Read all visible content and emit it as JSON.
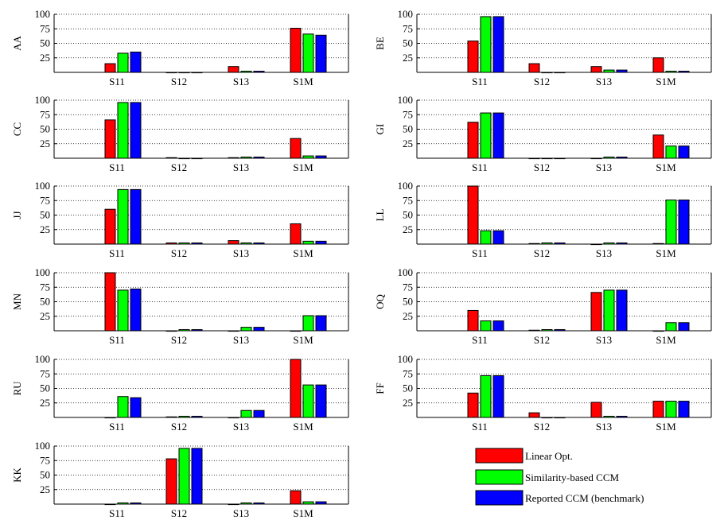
{
  "colors": {
    "linear": "#ff0000",
    "similarity": "#00ff00",
    "reported": "#0000ff",
    "grid": "#000000"
  },
  "legend": {
    "items": [
      {
        "label": "Linear Opt.",
        "color": "#ff0000"
      },
      {
        "label": "Similarity-based CCM",
        "color": "#00ff00"
      },
      {
        "label": "Reported CCM (benchmark)",
        "color": "#0000ff"
      }
    ]
  },
  "chart_data": [
    {
      "type": "bar",
      "ylabel": "AA",
      "categories": [
        "S11",
        "S12",
        "S13",
        "S1M"
      ],
      "yticks": [
        25,
        50,
        75,
        100
      ],
      "ylim": [
        0,
        100
      ],
      "grid": true,
      "series": [
        {
          "name": "Linear Opt.",
          "values": [
            15,
            0,
            10,
            76
          ]
        },
        {
          "name": "Similarity-based CCM",
          "values": [
            33,
            0,
            2,
            66
          ]
        },
        {
          "name": "Reported CCM (benchmark)",
          "values": [
            35,
            0,
            2,
            64
          ]
        }
      ]
    },
    {
      "type": "bar",
      "ylabel": "BE",
      "categories": [
        "S11",
        "S12",
        "S13",
        "S1M"
      ],
      "yticks": [
        25,
        50,
        75,
        100
      ],
      "ylim": [
        0,
        100
      ],
      "grid": true,
      "series": [
        {
          "name": "Linear Opt.",
          "values": [
            54,
            15,
            10,
            25
          ]
        },
        {
          "name": "Similarity-based CCM",
          "values": [
            96,
            0,
            4,
            2
          ]
        },
        {
          "name": "Reported CCM (benchmark)",
          "values": [
            96,
            0,
            4,
            2
          ]
        }
      ]
    },
    {
      "type": "bar",
      "ylabel": "CC",
      "categories": [
        "S11",
        "S12",
        "S13",
        "S1M"
      ],
      "yticks": [
        25,
        50,
        75,
        100
      ],
      "ylim": [
        0,
        100
      ],
      "grid": true,
      "series": [
        {
          "name": "Linear Opt.",
          "values": [
            66,
            1,
            1,
            34
          ]
        },
        {
          "name": "Similarity-based CCM",
          "values": [
            96,
            0,
            2,
            4
          ]
        },
        {
          "name": "Reported CCM (benchmark)",
          "values": [
            96,
            0,
            2,
            4
          ]
        }
      ]
    },
    {
      "type": "bar",
      "ylabel": "GI",
      "categories": [
        "S11",
        "S12",
        "S13",
        "S1M"
      ],
      "yticks": [
        25,
        50,
        75,
        100
      ],
      "ylim": [
        0,
        100
      ],
      "grid": true,
      "series": [
        {
          "name": "Linear Opt.",
          "values": [
            62,
            0,
            0,
            40
          ]
        },
        {
          "name": "Similarity-based CCM",
          "values": [
            78,
            0,
            2,
            21
          ]
        },
        {
          "name": "Reported CCM (benchmark)",
          "values": [
            78,
            0,
            2,
            21
          ]
        }
      ]
    },
    {
      "type": "bar",
      "ylabel": "JJ",
      "categories": [
        "S11",
        "S12",
        "S13",
        "S1M"
      ],
      "yticks": [
        25,
        50,
        75,
        100
      ],
      "ylim": [
        0,
        100
      ],
      "grid": true,
      "series": [
        {
          "name": "Linear Opt.",
          "values": [
            60,
            2,
            6,
            35
          ]
        },
        {
          "name": "Similarity-based CCM",
          "values": [
            94,
            2,
            2,
            5
          ]
        },
        {
          "name": "Reported CCM (benchmark)",
          "values": [
            94,
            2,
            2,
            5
          ]
        }
      ]
    },
    {
      "type": "bar",
      "ylabel": "LL",
      "categories": [
        "S11",
        "S12",
        "S13",
        "S1M"
      ],
      "yticks": [
        25,
        50,
        75,
        100
      ],
      "ylim": [
        0,
        100
      ],
      "grid": true,
      "series": [
        {
          "name": "Linear Opt.",
          "values": [
            100,
            1,
            0,
            1
          ]
        },
        {
          "name": "Similarity-based CCM",
          "values": [
            23,
            2,
            2,
            76
          ]
        },
        {
          "name": "Reported CCM (benchmark)",
          "values": [
            23,
            2,
            2,
            76
          ]
        }
      ]
    },
    {
      "type": "bar",
      "ylabel": "MN",
      "categories": [
        "S11",
        "S12",
        "S13",
        "S1M"
      ],
      "yticks": [
        25,
        50,
        75,
        100
      ],
      "ylim": [
        0,
        100
      ],
      "grid": true,
      "series": [
        {
          "name": "Linear Opt.",
          "values": [
            100,
            0,
            0,
            0
          ]
        },
        {
          "name": "Similarity-based CCM",
          "values": [
            70,
            2,
            6,
            26
          ]
        },
        {
          "name": "Reported CCM (benchmark)",
          "values": [
            72,
            2,
            6,
            26
          ]
        }
      ]
    },
    {
      "type": "bar",
      "ylabel": "OQ",
      "categories": [
        "S11",
        "S12",
        "S13",
        "S1M"
      ],
      "yticks": [
        25,
        50,
        75,
        100
      ],
      "ylim": [
        0,
        100
      ],
      "grid": true,
      "series": [
        {
          "name": "Linear Opt.",
          "values": [
            35,
            1,
            66,
            0
          ]
        },
        {
          "name": "Similarity-based CCM",
          "values": [
            17,
            2,
            70,
            14
          ]
        },
        {
          "name": "Reported CCM (benchmark)",
          "values": [
            17,
            2,
            70,
            14
          ]
        }
      ]
    },
    {
      "type": "bar",
      "ylabel": "RU",
      "categories": [
        "S11",
        "S12",
        "S13",
        "S1M"
      ],
      "yticks": [
        25,
        50,
        75,
        100
      ],
      "ylim": [
        0,
        100
      ],
      "grid": true,
      "series": [
        {
          "name": "Linear Opt.",
          "values": [
            0,
            1,
            0,
            100
          ]
        },
        {
          "name": "Similarity-based CCM",
          "values": [
            36,
            2,
            12,
            56
          ]
        },
        {
          "name": "Reported CCM (benchmark)",
          "values": [
            34,
            2,
            12,
            56
          ]
        }
      ]
    },
    {
      "type": "bar",
      "ylabel": "FF",
      "categories": [
        "S11",
        "S12",
        "S13",
        "S1M"
      ],
      "yticks": [
        25,
        50,
        75,
        100
      ],
      "ylim": [
        0,
        100
      ],
      "grid": true,
      "series": [
        {
          "name": "Linear Opt.",
          "values": [
            42,
            8,
            26,
            28
          ]
        },
        {
          "name": "Similarity-based CCM",
          "values": [
            72,
            0,
            2,
            28
          ]
        },
        {
          "name": "Reported CCM (benchmark)",
          "values": [
            72,
            0,
            2,
            28
          ]
        }
      ]
    },
    {
      "type": "bar",
      "ylabel": "KK",
      "categories": [
        "S11",
        "S12",
        "S13",
        "S1M"
      ],
      "yticks": [
        25,
        50,
        75,
        100
      ],
      "ylim": [
        0,
        100
      ],
      "grid": true,
      "series": [
        {
          "name": "Linear Opt.",
          "values": [
            0,
            78,
            0,
            23
          ]
        },
        {
          "name": "Similarity-based CCM",
          "values": [
            2,
            96,
            2,
            4
          ]
        },
        {
          "name": "Reported CCM (benchmark)",
          "values": [
            2,
            96,
            2,
            4
          ]
        }
      ]
    }
  ]
}
